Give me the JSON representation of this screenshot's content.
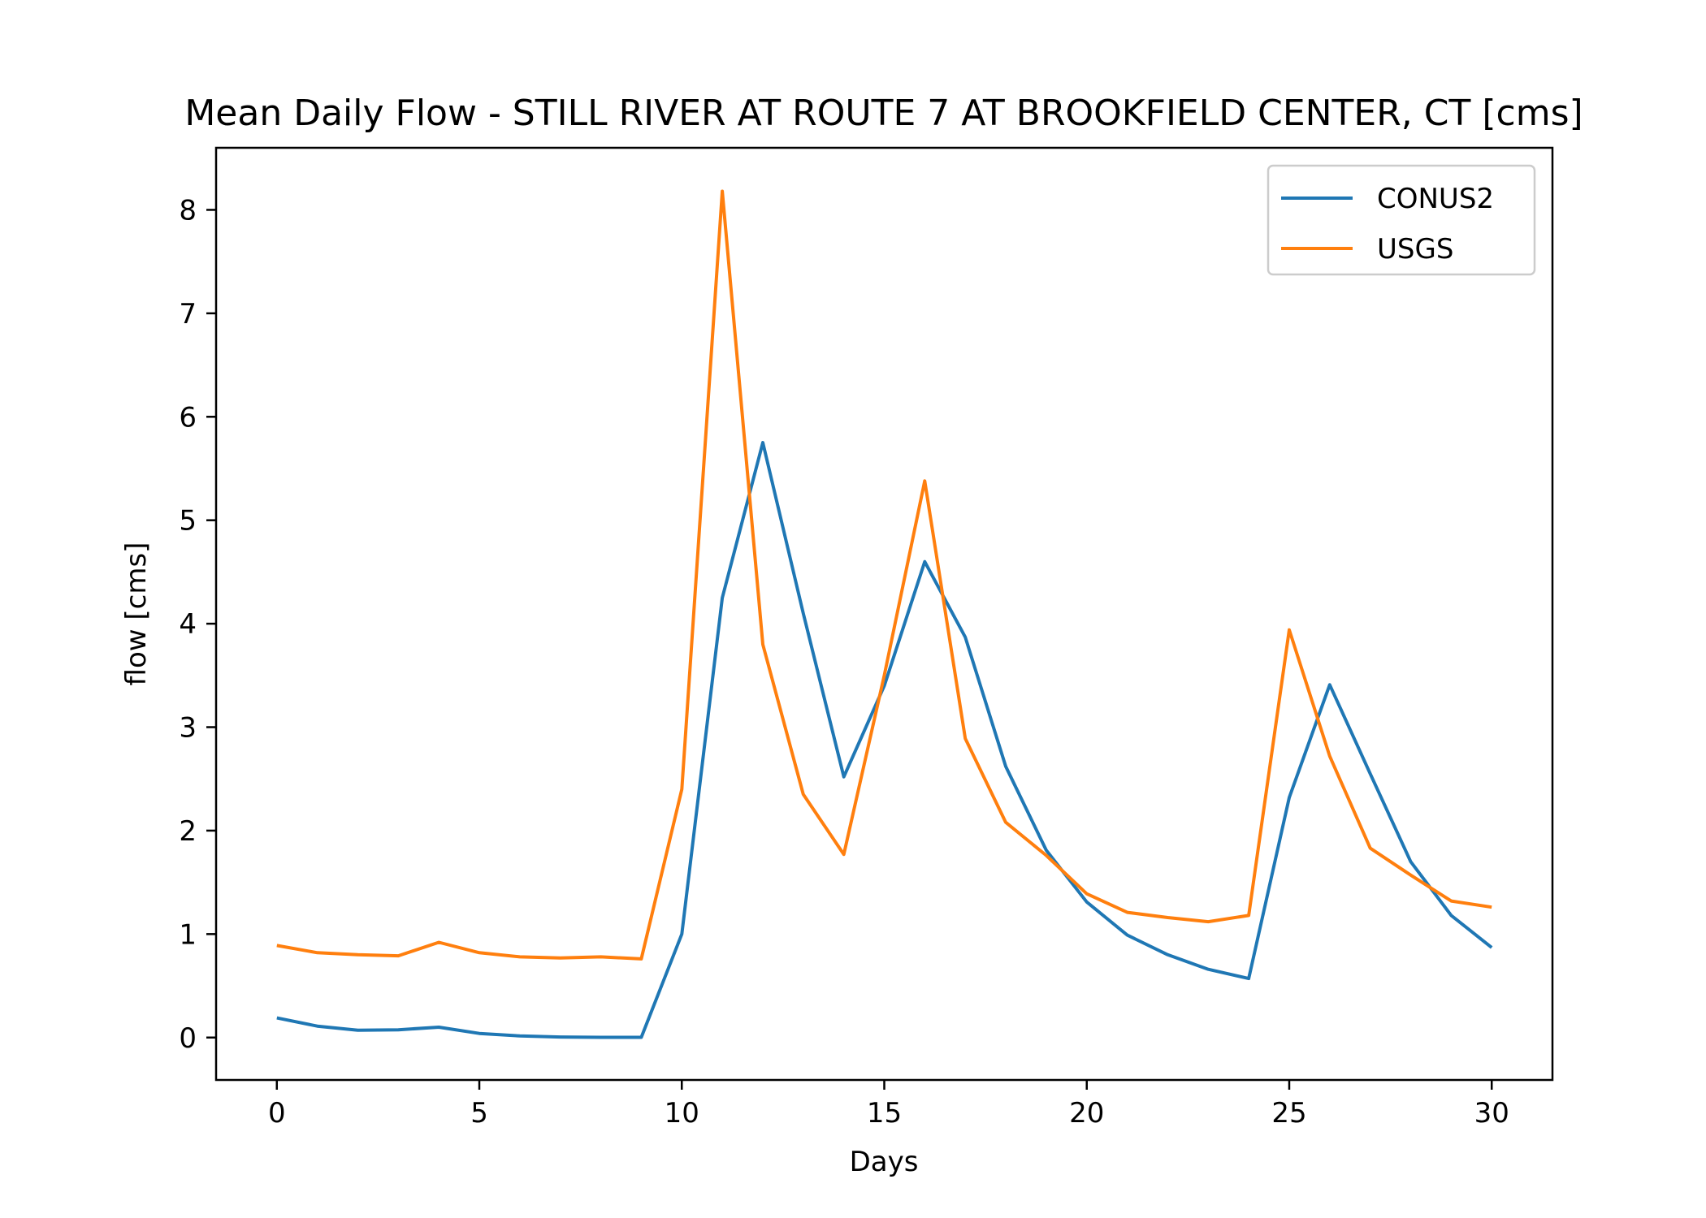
{
  "chart_data": {
    "type": "line",
    "title": "Mean Daily Flow - STILL RIVER AT ROUTE 7 AT BROOKFIELD CENTER, CT [cms]",
    "xlabel": "Days",
    "ylabel": "flow [cms]",
    "xlim": [
      -1.5,
      31.5
    ],
    "ylim": [
      -0.41,
      8.6
    ],
    "xticks": [
      0,
      5,
      10,
      15,
      20,
      25,
      30
    ],
    "yticks": [
      0,
      1,
      2,
      3,
      4,
      5,
      6,
      7,
      8
    ],
    "grid": false,
    "legend": "top-right",
    "x": [
      0,
      1,
      2,
      3,
      4,
      5,
      6,
      7,
      8,
      9,
      10,
      11,
      12,
      13,
      14,
      15,
      16,
      17,
      18,
      19,
      20,
      21,
      22,
      23,
      24,
      25,
      26,
      27,
      28,
      29,
      30
    ],
    "series": [
      {
        "name": "CONUS2",
        "color": "#1f77b4",
        "values": [
          0.19,
          0.11,
          0.07,
          0.075,
          0.1,
          0.04,
          0.015,
          0.005,
          0.002,
          0.002,
          1.0,
          4.25,
          5.75,
          4.1,
          2.52,
          3.4,
          4.6,
          3.87,
          2.62,
          1.81,
          1.31,
          0.99,
          0.8,
          0.66,
          0.57,
          2.32,
          3.41,
          2.55,
          1.7,
          1.18,
          0.87
        ]
      },
      {
        "name": "USGS",
        "color": "#ff7f0e",
        "values": [
          0.89,
          0.82,
          0.8,
          0.79,
          0.92,
          0.82,
          0.78,
          0.77,
          0.78,
          0.76,
          2.4,
          8.18,
          3.8,
          2.35,
          1.77,
          3.5,
          5.38,
          2.89,
          2.08,
          1.76,
          1.39,
          1.21,
          1.16,
          1.12,
          1.18,
          3.94,
          2.72,
          1.83,
          1.57,
          1.32,
          1.26
        ]
      }
    ]
  }
}
